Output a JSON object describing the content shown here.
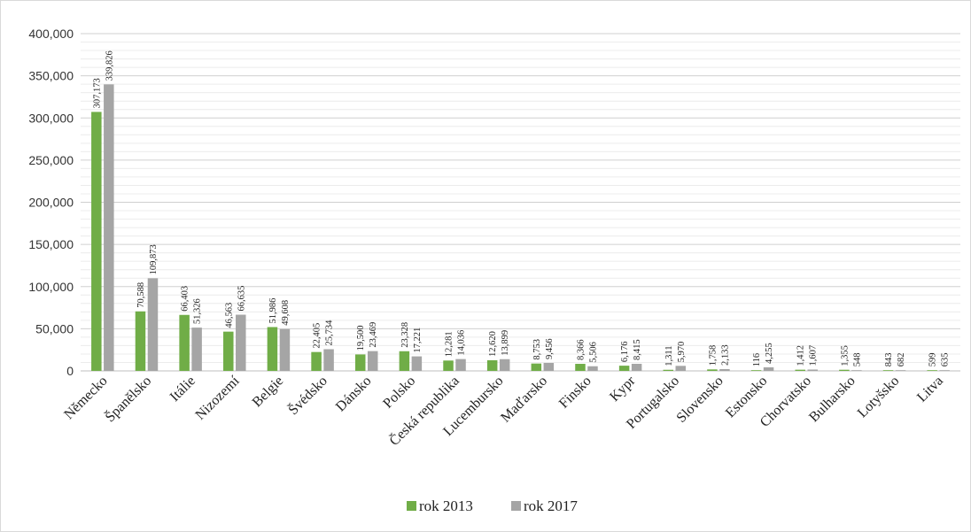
{
  "chart_data": {
    "type": "bar",
    "title": "",
    "xlabel": "",
    "ylabel": "",
    "ylim": [
      0,
      400000
    ],
    "yticks": [
      0,
      50000,
      100000,
      150000,
      200000,
      250000,
      300000,
      350000,
      400000
    ],
    "ytick_labels": [
      "0",
      "50,000",
      "100,000",
      "150,000",
      "200,000",
      "250,000",
      "300,000",
      "350,000",
      "400,000"
    ],
    "minor_grid_step": 10000,
    "grid": true,
    "legend_position": "bottom",
    "categories": [
      "Německo",
      "Španělsko",
      "Itálie",
      "Nizozemí",
      "Belgie",
      "Švédsko",
      "Dánsko",
      "Polsko",
      "Česká republika",
      "Lucembursko",
      "Maďarsko",
      "Finsko",
      "Kypr",
      "Portugalsko",
      "Slovensko",
      "Estonsko",
      "Chorvatsko",
      "Bulharsko",
      "Lotyšsko",
      "Litva"
    ],
    "series": [
      {
        "name": "rok 2013",
        "color": "#70ad47",
        "values": [
          307173,
          70588,
          66403,
          46563,
          51986,
          22405,
          19500,
          23328,
          12281,
          12620,
          8753,
          8366,
          6176,
          1311,
          1758,
          116,
          1412,
          1355,
          843,
          599
        ],
        "labels": [
          "307,173",
          "70,588",
          "66,403",
          "46,563",
          "51,986",
          "22,405",
          "19,500",
          "23,328",
          "12,281",
          "12,620",
          "8,753",
          "8,366",
          "6,176",
          "1,311",
          "1,758",
          "116",
          "1,412",
          "1,355",
          "843",
          "599"
        ]
      },
      {
        "name": "rok 2017",
        "color": "#a5a5a5",
        "values": [
          339826,
          109873,
          51326,
          66635,
          49608,
          25734,
          23469,
          17221,
          14036,
          13899,
          9456,
          5506,
          8415,
          5970,
          2133,
          4255,
          1607,
          548,
          682,
          635
        ],
        "labels": [
          "339,826",
          "109,873",
          "51,326",
          "66,635",
          "49,608",
          "25,734",
          "23,469",
          "17,221",
          "14,036",
          "13,899",
          "9,456",
          "5,506",
          "8,415",
          "5,970",
          "2,133",
          "4,255",
          "1,607",
          "548",
          "682",
          "635"
        ]
      }
    ]
  }
}
